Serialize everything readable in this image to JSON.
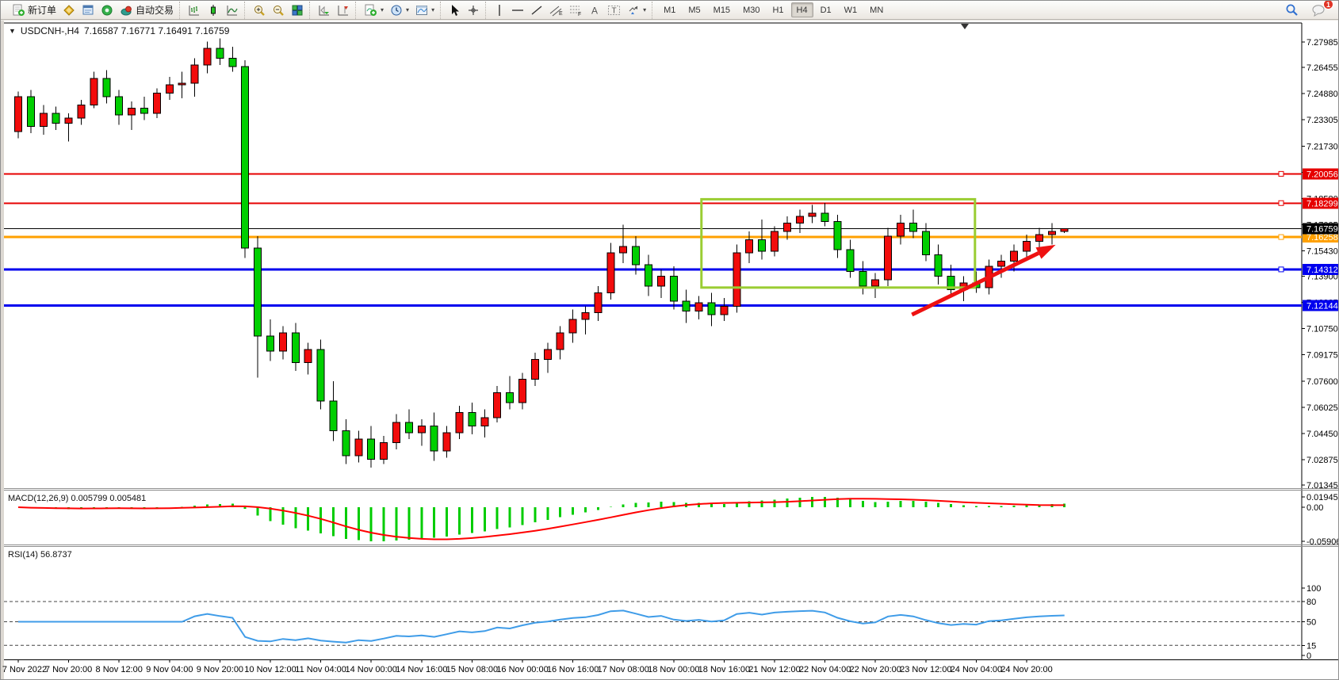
{
  "toolbar": {
    "new_order_label": "新订单",
    "autotrading_label": "自动交易",
    "timeframes": [
      "M1",
      "M5",
      "M15",
      "M30",
      "H1",
      "H4",
      "D1",
      "W1",
      "MN"
    ],
    "active_timeframe": "H4",
    "notification_count": "1"
  },
  "chart": {
    "symbol_period": "USDCNH-,H4",
    "ohlc_text": "7.16587 7.16771 7.16491 7.16759",
    "macd_label": "MACD(12,26,9) 0.005799 0.005481",
    "rsi_label": "RSI(14) 56.8737"
  },
  "chart_data": {
    "type": "candlestick",
    "symbol": "USDCNH-",
    "timeframe": "H4",
    "ylim": [
      7.01345,
      7.27985
    ],
    "colors": {
      "bull": "#f20c0c",
      "bear": "#00cf00",
      "wick": "#000000",
      "macd_hist": "#00cc00",
      "macd_signal": "#ff0000",
      "rsi_line": "#3f9ce8",
      "rect": "#9acd32",
      "arrow": "#ee1111",
      "level_red": "#e60000",
      "level_blue": "#0000ee",
      "level_orange": "#ffa000",
      "current_black": "#000000"
    },
    "candles": [
      [
        7.226,
        7.25,
        7.222,
        7.247
      ],
      [
        7.247,
        7.251,
        7.225,
        7.229
      ],
      [
        7.229,
        7.242,
        7.224,
        7.237
      ],
      [
        7.237,
        7.241,
        7.227,
        7.231
      ],
      [
        7.231,
        7.237,
        7.22,
        7.234
      ],
      [
        7.234,
        7.245,
        7.23,
        7.242
      ],
      [
        7.242,
        7.262,
        7.24,
        7.258
      ],
      [
        7.258,
        7.263,
        7.243,
        7.247
      ],
      [
        7.247,
        7.251,
        7.23,
        7.236
      ],
      [
        7.236,
        7.244,
        7.227,
        7.24
      ],
      [
        7.24,
        7.247,
        7.233,
        7.237
      ],
      [
        7.237,
        7.252,
        7.234,
        7.249
      ],
      [
        7.249,
        7.259,
        7.245,
        7.254
      ],
      [
        7.254,
        7.262,
        7.246,
        7.255
      ],
      [
        7.255,
        7.27,
        7.247,
        7.266
      ],
      [
        7.266,
        7.28,
        7.261,
        7.276
      ],
      [
        7.276,
        7.282,
        7.266,
        7.27
      ],
      [
        7.27,
        7.277,
        7.262,
        7.265
      ],
      [
        7.265,
        7.269,
        7.15,
        7.156
      ],
      [
        7.156,
        7.163,
        7.078,
        7.103
      ],
      [
        7.103,
        7.113,
        7.088,
        7.094
      ],
      [
        7.094,
        7.109,
        7.089,
        7.105
      ],
      [
        7.105,
        7.111,
        7.082,
        7.087
      ],
      [
        7.087,
        7.099,
        7.08,
        7.095
      ],
      [
        7.095,
        7.101,
        7.059,
        7.064
      ],
      [
        7.064,
        7.076,
        7.04,
        7.046
      ],
      [
        7.046,
        7.053,
        7.026,
        7.031
      ],
      [
        7.031,
        7.046,
        7.027,
        7.041
      ],
      [
        7.041,
        7.049,
        7.024,
        7.029
      ],
      [
        7.029,
        7.043,
        7.026,
        7.039
      ],
      [
        7.039,
        7.056,
        7.035,
        7.051
      ],
      [
        7.051,
        7.059,
        7.041,
        7.045
      ],
      [
        7.045,
        7.053,
        7.037,
        7.049
      ],
      [
        7.049,
        7.057,
        7.028,
        7.034
      ],
      [
        7.034,
        7.049,
        7.03,
        7.045
      ],
      [
        7.045,
        7.061,
        7.041,
        7.057
      ],
      [
        7.057,
        7.063,
        7.044,
        7.049
      ],
      [
        7.049,
        7.059,
        7.042,
        7.054
      ],
      [
        7.054,
        7.073,
        7.051,
        7.069
      ],
      [
        7.069,
        7.079,
        7.059,
        7.063
      ],
      [
        7.063,
        7.081,
        7.059,
        7.077
      ],
      [
        7.077,
        7.093,
        7.073,
        7.089
      ],
      [
        7.089,
        7.099,
        7.081,
        7.095
      ],
      [
        7.095,
        7.109,
        7.089,
        7.105
      ],
      [
        7.105,
        7.119,
        7.099,
        7.113
      ],
      [
        7.113,
        7.121,
        7.104,
        7.117
      ],
      [
        7.117,
        7.133,
        7.112,
        7.129
      ],
      [
        7.129,
        7.159,
        7.125,
        7.153
      ],
      [
        7.153,
        7.17,
        7.147,
        7.157
      ],
      [
        7.157,
        7.163,
        7.14,
        7.146
      ],
      [
        7.146,
        7.152,
        7.127,
        7.133
      ],
      [
        7.133,
        7.143,
        7.126,
        7.139
      ],
      [
        7.139,
        7.145,
        7.119,
        7.124
      ],
      [
        7.124,
        7.131,
        7.111,
        7.118
      ],
      [
        7.118,
        7.127,
        7.113,
        7.123
      ],
      [
        7.123,
        7.129,
        7.109,
        7.116
      ],
      [
        7.116,
        7.126,
        7.112,
        7.121
      ],
      [
        7.121,
        7.158,
        7.117,
        7.153
      ],
      [
        7.153,
        7.166,
        7.147,
        7.161
      ],
      [
        7.161,
        7.173,
        7.149,
        7.154
      ],
      [
        7.154,
        7.169,
        7.151,
        7.166
      ],
      [
        7.166,
        7.175,
        7.161,
        7.171
      ],
      [
        7.171,
        7.179,
        7.165,
        7.175
      ],
      [
        7.175,
        7.182,
        7.171,
        7.177
      ],
      [
        7.177,
        7.183,
        7.169,
        7.172
      ],
      [
        7.172,
        7.176,
        7.15,
        7.155
      ],
      [
        7.155,
        7.161,
        7.138,
        7.142
      ],
      [
        7.142,
        7.148,
        7.128,
        7.133
      ],
      [
        7.133,
        7.141,
        7.126,
        7.137
      ],
      [
        7.137,
        7.168,
        7.133,
        7.163
      ],
      [
        7.163,
        7.176,
        7.158,
        7.171
      ],
      [
        7.171,
        7.179,
        7.162,
        7.166
      ],
      [
        7.166,
        7.171,
        7.148,
        7.152
      ],
      [
        7.152,
        7.158,
        7.134,
        7.139
      ],
      [
        7.139,
        7.146,
        7.127,
        7.131
      ],
      [
        7.131,
        7.139,
        7.124,
        7.135
      ],
      [
        7.135,
        7.142,
        7.129,
        7.132
      ],
      [
        7.132,
        7.149,
        7.128,
        7.145
      ],
      [
        7.145,
        7.152,
        7.138,
        7.148
      ],
      [
        7.148,
        7.158,
        7.142,
        7.154
      ],
      [
        7.154,
        7.164,
        7.149,
        7.16
      ],
      [
        7.16,
        7.168,
        7.154,
        7.164
      ],
      [
        7.164,
        7.171,
        7.158,
        7.166
      ],
      [
        7.16587,
        7.16771,
        7.16491,
        7.16759
      ]
    ],
    "time_labels": [
      "7 Nov 2022",
      "7 Nov 20:00",
      "8 Nov 12:00",
      "9 Nov 04:00",
      "9 Nov 20:00",
      "10 Nov 12:00",
      "11 Nov 04:00",
      "14 Nov 00:00",
      "14 Nov 16:00",
      "15 Nov 08:00",
      "16 Nov 00:00",
      "16 Nov 16:00",
      "17 Nov 08:00",
      "18 Nov 00:00",
      "18 Nov 16:00",
      "21 Nov 12:00",
      "22 Nov 04:00",
      "22 Nov 20:00",
      "23 Nov 12:00",
      "24 Nov 04:00",
      "24 Nov 20:00"
    ],
    "price_ticks": [
      7.27985,
      7.26455,
      7.2488,
      7.23305,
      7.2173,
      7.20155,
      7.1858,
      7.17005,
      7.1543,
      7.139,
      7.12325,
      7.1075,
      7.09175,
      7.076,
      7.06025,
      7.0445,
      7.02875,
      7.01345
    ],
    "hlines": [
      {
        "price": 7.20056,
        "color": "#e60000",
        "width": 2,
        "badge": "7.20056",
        "handle": true
      },
      {
        "price": 7.18299,
        "color": "#e60000",
        "width": 2,
        "badge": "7.18299",
        "handle": true
      },
      {
        "price": 7.16258,
        "color": "#ffa000",
        "width": 3,
        "badge": "7.16258",
        "handle": true
      },
      {
        "price": 7.14312,
        "color": "#0000ee",
        "width": 3,
        "badge": "7.14312",
        "handle": true
      },
      {
        "price": 7.12144,
        "color": "#0000ee",
        "width": 3,
        "badge": "7.12144",
        "handle": false
      },
      {
        "price": 7.16759,
        "color": "#000000",
        "width": 1,
        "badge": "7.16759",
        "handle": false,
        "current": true
      }
    ],
    "rectangle": {
      "c1": 54.2,
      "p1": 7.1853,
      "c2": 75.9,
      "p2": 7.1322
    },
    "arrow": {
      "c1": 70.9,
      "p1": 7.1159,
      "c2": 82.3,
      "p2": 7.1579
    },
    "macd": {
      "params": [
        12,
        26,
        9
      ],
      "values_text": "0.005799 0.005481",
      "axis_labels": [
        "0.019452",
        "0.00",
        "-0.059068"
      ]
    },
    "rsi": {
      "period": 14,
      "value_text": "56.8737",
      "levels": [
        80,
        50,
        15
      ],
      "axis_labels": [
        100,
        80,
        50,
        15,
        0
      ]
    }
  }
}
